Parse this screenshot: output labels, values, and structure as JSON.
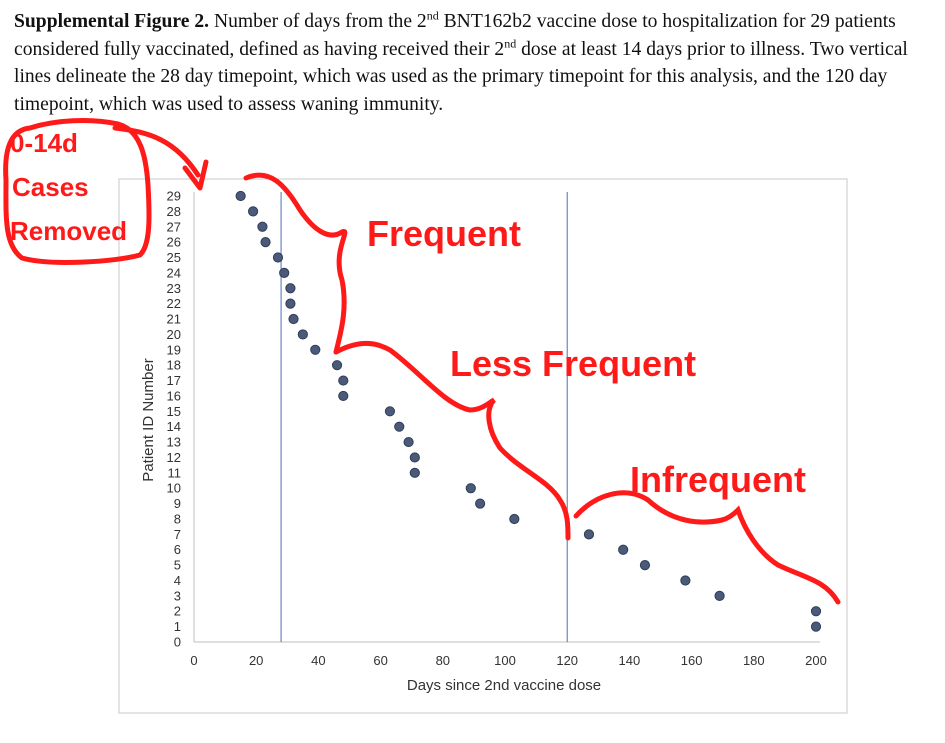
{
  "caption": {
    "bold": "Supplemental Figure 2.",
    "p1": " Number of days from the 2",
    "sup1": "nd",
    "p2": " BNT162b2 vaccine dose to hospitalization for 29 patients considered fully vaccinated, defined as having received their 2",
    "sup2": "nd",
    "p3": " dose at least 14 days prior to illness. Two vertical lines delineate the 28 day timepoint, which was used as the primary timepoint for this analysis, and the 120 day timepoint, which was used to assess waning immunity."
  },
  "annotations": {
    "removed_line1": "0-14d",
    "removed_line2": "Cases",
    "removed_line3": "Removed",
    "frequent": "Frequent",
    "less_frequent": "Less Frequent",
    "infrequent": "Infrequent"
  },
  "colors": {
    "marker": "#4a5a78",
    "marker_edge": "#2f3d58",
    "annotation": "#ff1a1a",
    "vline": "#4a6fb5"
  },
  "chart_data": {
    "type": "scatter",
    "xlabel": "Days since 2nd vaccine dose",
    "ylabel": "Patient ID Number",
    "xlim": [
      0,
      200
    ],
    "ylim": [
      0,
      29
    ],
    "xticks": [
      0,
      20,
      40,
      60,
      80,
      100,
      120,
      140,
      160,
      180,
      200
    ],
    "yticks": [
      0,
      1,
      2,
      3,
      4,
      5,
      6,
      7,
      8,
      9,
      10,
      11,
      12,
      13,
      14,
      15,
      16,
      17,
      18,
      19,
      20,
      21,
      22,
      23,
      24,
      25,
      26,
      27,
      28,
      29
    ],
    "vlines": [
      28,
      120
    ],
    "grid": false,
    "points": [
      {
        "x": 15,
        "y": 29
      },
      {
        "x": 19,
        "y": 28
      },
      {
        "x": 22,
        "y": 27
      },
      {
        "x": 23,
        "y": 26
      },
      {
        "x": 27,
        "y": 25
      },
      {
        "x": 29,
        "y": 24
      },
      {
        "x": 31,
        "y": 23
      },
      {
        "x": 31,
        "y": 22
      },
      {
        "x": 32,
        "y": 21
      },
      {
        "x": 35,
        "y": 20
      },
      {
        "x": 39,
        "y": 19
      },
      {
        "x": 46,
        "y": 18
      },
      {
        "x": 48,
        "y": 17
      },
      {
        "x": 48,
        "y": 16
      },
      {
        "x": 63,
        "y": 15
      },
      {
        "x": 66,
        "y": 14
      },
      {
        "x": 69,
        "y": 13
      },
      {
        "x": 71,
        "y": 12
      },
      {
        "x": 71,
        "y": 11
      },
      {
        "x": 89,
        "y": 10
      },
      {
        "x": 92,
        "y": 9
      },
      {
        "x": 103,
        "y": 8
      },
      {
        "x": 127,
        "y": 7
      },
      {
        "x": 138,
        "y": 6
      },
      {
        "x": 145,
        "y": 5
      },
      {
        "x": 158,
        "y": 4
      },
      {
        "x": 169,
        "y": 3
      },
      {
        "x": 200,
        "y": 2
      },
      {
        "x": 200,
        "y": 1
      }
    ]
  }
}
